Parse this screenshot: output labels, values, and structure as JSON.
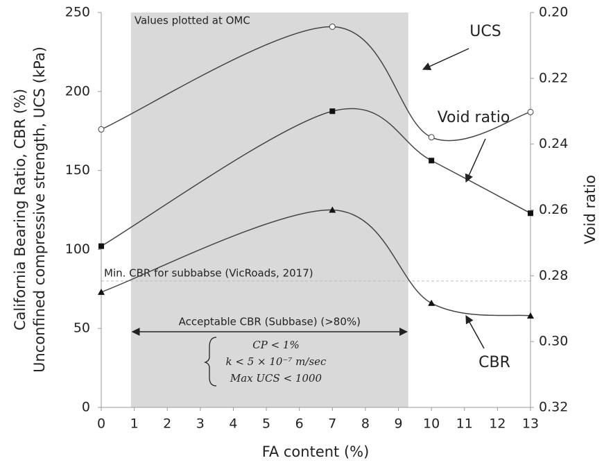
{
  "chart_data": {
    "type": "line",
    "x_label": "FA content (%)",
    "y_label": [
      "California Bearing Ratio, CBR (%)",
      "Unconfined compressive strength, UCS (kPa)"
    ],
    "y2_label": "Void ratio",
    "x": [
      0,
      7,
      10,
      13
    ],
    "series": [
      {
        "name": "UCS",
        "color": "#444444",
        "marker": "open-circle",
        "values": [
          176,
          241,
          171,
          187
        ]
      },
      {
        "name": "Void ratio",
        "color": "#444444",
        "marker": "square",
        "axis": "y2",
        "values": [
          0.271,
          0.23,
          0.245,
          0.261
        ]
      },
      {
        "name": "CBR",
        "color": "#444444",
        "marker": "triangle",
        "values": [
          73,
          125,
          66,
          58
        ]
      }
    ],
    "xlim": [
      0,
      13
    ],
    "xticks": [
      0,
      1,
      2,
      3,
      4,
      5,
      6,
      7,
      8,
      9,
      10,
      11,
      12,
      13
    ],
    "ylim": [
      0,
      250
    ],
    "yticks": [
      0,
      50,
      100,
      150,
      200,
      250
    ],
    "y2lim": [
      0.32,
      0.2
    ],
    "y2ticks": [
      {
        "value": 0.2,
        "label": "0.20"
      },
      0.22,
      0.24,
      0.26,
      0.28,
      {
        "value": 0.3,
        "label": "0.30"
      },
      0.32
    ],
    "threshold": {
      "value": 80,
      "label": "Min. CBR for subbabse (VicRoads, 2017)",
      "color": "#bbbbbb"
    },
    "shade": {
      "x": [
        0.9,
        9.3
      ],
      "color": "#d9d9d9",
      "label": "Values plotted at OMC"
    },
    "range_label": "Acceptable CBR (Subbase) (>80%)",
    "conditions": [
      "CP < 1%",
      "k < 5 × 10⁻⁷ m/sec",
      "Max UCS < 1000"
    ]
  }
}
